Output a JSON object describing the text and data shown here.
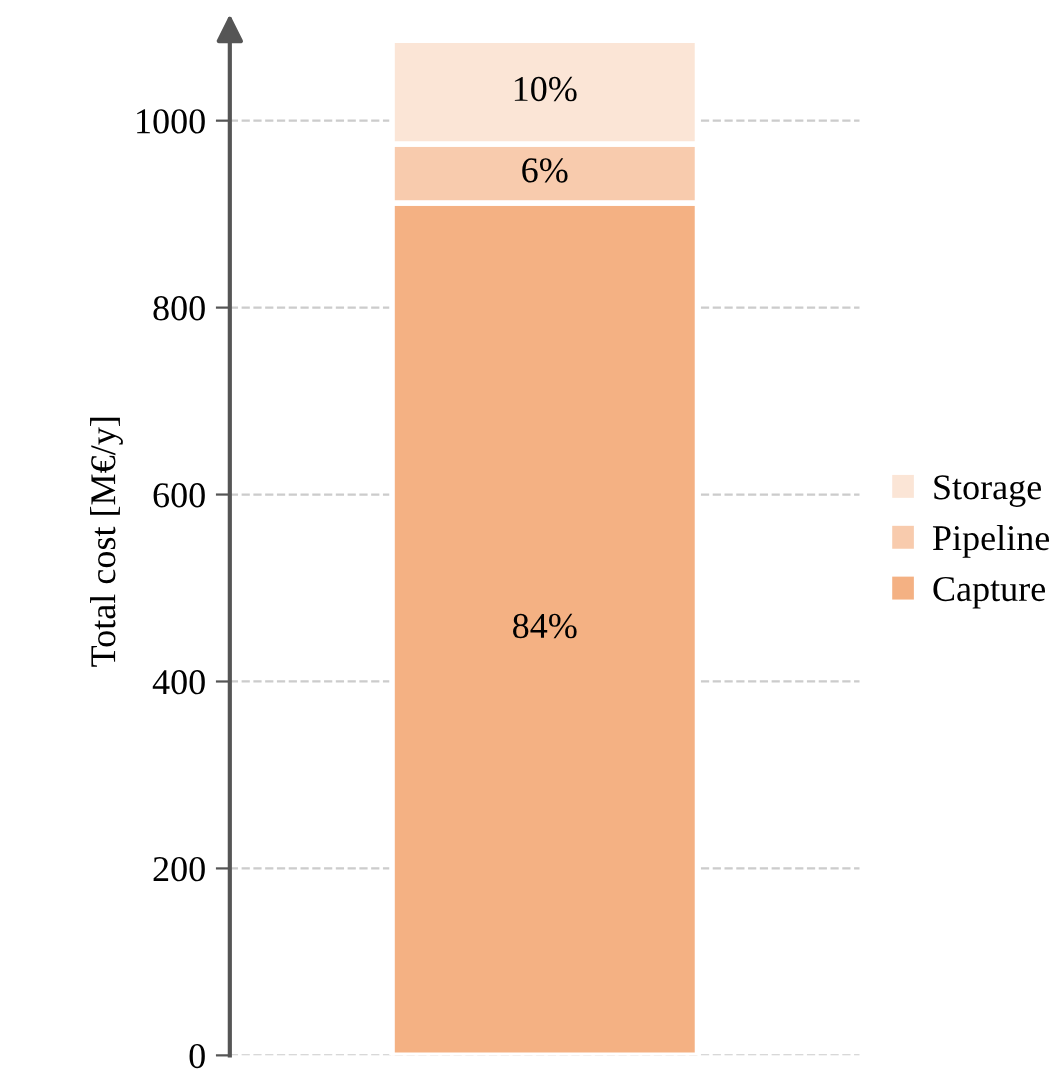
{
  "chart_data": {
    "type": "bar",
    "stacked": true,
    "ylabel": "Total cost [M€/y]",
    "categories": [
      null
    ],
    "series": [
      {
        "name": "Capture",
        "color": "#f4b183",
        "values": [
          912
        ]
      },
      {
        "name": "Pipeline",
        "color": "#f8cbad",
        "values": [
          63
        ]
      },
      {
        "name": "Storage",
        "color": "#fbe5d6",
        "values": [
          111
        ]
      }
    ],
    "annotations": [
      "84%",
      "6%",
      "10%"
    ],
    "ylim": [
      0,
      1100
    ],
    "yticks": [
      0,
      200,
      400,
      600,
      800,
      1000
    ],
    "grid": "y",
    "legend": "right"
  }
}
